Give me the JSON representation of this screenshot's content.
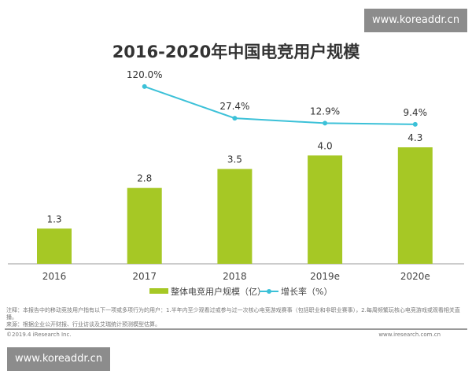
{
  "watermark": "www.koreaddr.cn",
  "chart_data": {
    "type": "bar",
    "title": "2016-2020年中国电竞用户规模",
    "categories": [
      "2016",
      "2017",
      "2018",
      "2019e",
      "2020e"
    ],
    "series": [
      {
        "name": "整体电竞用户规模（亿）",
        "type": "bar",
        "color": "#a6c825",
        "values": [
          1.3,
          2.8,
          3.5,
          4.0,
          4.3
        ],
        "labels": [
          "1.3",
          "2.8",
          "3.5",
          "4.0",
          "4.3"
        ]
      },
      {
        "name": "增长率（%）",
        "type": "line",
        "color": "#3cc1d8",
        "values": [
          null,
          120.0,
          27.4,
          12.9,
          9.4
        ],
        "labels": [
          "",
          "120.0%",
          "27.4%",
          "12.9%",
          "9.4%"
        ]
      }
    ],
    "legend": "bottom",
    "grid": false
  },
  "footer": {
    "note": "注释：本报告中的移动竞技用户指有以下一项或多项行为的用户：1.半年内至少观看过或参与过一次核心电竞游戏赛事（包括职业和非职业赛事），2.每周频繁玩核心电竞游戏或观看相关直播。",
    "source": "来源：根据企业公开财报、行业访谈及艾瑞统计预测模型估算。",
    "copyright": "©2019.4 iResearch Inc.",
    "site": "www.iresearch.com.cn"
  }
}
